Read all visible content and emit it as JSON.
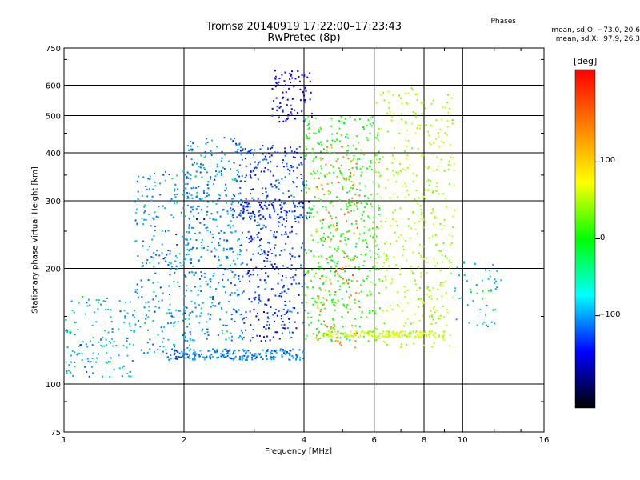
{
  "chart_data": {
    "type": "scatter",
    "title": "Tromsø 20140919 17:22:00–17:23:43",
    "subtitle": "RwPretec (8p)",
    "xlabel": "Frequency [MHz]",
    "ylabel": "Stationary phase Virtual Height [km]",
    "x_scale": "log",
    "y_scale": "log",
    "xlim": [
      1,
      16
    ],
    "ylim": [
      75,
      750
    ],
    "x_ticks": [
      "1",
      "2",
      "4",
      "6",
      "8",
      "10",
      "16"
    ],
    "y_ticks": [
      "75",
      "100",
      "200",
      "300",
      "400",
      "500",
      "600",
      "750"
    ],
    "grid": true,
    "phase_stats": {
      "title": "Phases",
      "o_mode": "mean, sd,O: −73.0, 20.6",
      "x_mode": "mean, sd,X:  97.9, 26.3"
    },
    "colorbar": {
      "label": "[deg]",
      "ticks": [
        "100",
        "0",
        "−100"
      ],
      "colors": [
        "#ff0000",
        "#ff8000",
        "#ffff00",
        "#00ff00",
        "#00ffff",
        "#0000ff",
        "#000000"
      ]
    },
    "clusters": [
      {
        "x": [
          1.0,
          1.5
        ],
        "y": [
          105,
          170
        ],
        "n": 150,
        "phase": -40
      },
      {
        "x": [
          1.5,
          2.1
        ],
        "y": [
          120,
          360
        ],
        "n": 260,
        "phase": -48
      },
      {
        "x": [
          2.0,
          2.8
        ],
        "y": [
          130,
          440
        ],
        "n": 420,
        "phase": -52
      },
      {
        "x": [
          2.8,
          4.0
        ],
        "y": [
          130,
          420
        ],
        "n": 420,
        "phase": -75
      },
      {
        "x": [
          3.3,
          4.2
        ],
        "y": [
          480,
          660
        ],
        "n": 90,
        "phase": -95
      },
      {
        "x": [
          2.6,
          4.2
        ],
        "y": [
          270,
          300
        ],
        "n": 80,
        "phase": -80
      },
      {
        "x": [
          1.8,
          4.0
        ],
        "y": [
          116,
          124
        ],
        "n": 220,
        "phase": -55
      },
      {
        "x": [
          4.0,
          6.2
        ],
        "y": [
          130,
          500
        ],
        "n": 480,
        "phase": 10
      },
      {
        "x": [
          6.0,
          9.5
        ],
        "y": [
          125,
          600
        ],
        "n": 420,
        "phase": 60
      },
      {
        "x": [
          4.4,
          9.0
        ],
        "y": [
          133,
          138
        ],
        "n": 160,
        "phase": 75
      },
      {
        "x": [
          9.5,
          12.5
        ],
        "y": [
          140,
          210
        ],
        "n": 50,
        "phase": -30
      },
      {
        "x": [
          4.3,
          5.5
        ],
        "y": [
          125,
          420
        ],
        "n": 120,
        "phase": 150
      }
    ]
  }
}
